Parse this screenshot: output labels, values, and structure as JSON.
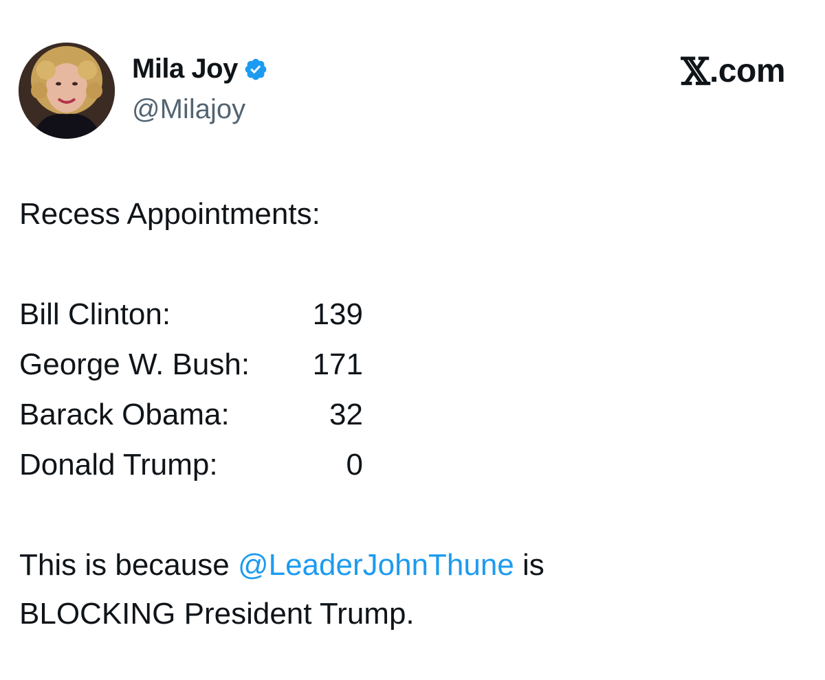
{
  "post": {
    "author": {
      "display_name": "Mila Joy",
      "handle": "@Milajoy",
      "verified_color": "#1d9bf0"
    },
    "site_label": ".com",
    "heading": "Recess Appointments:",
    "rows": [
      {
        "name": "Bill Clinton:",
        "count": "139"
      },
      {
        "name": "George W. Bush:",
        "count": "171"
      },
      {
        "name": "Barack Obama:",
        "count": "32"
      },
      {
        "name": "Donald Trump:",
        "count": "0"
      }
    ],
    "footer": {
      "before_mention": "This is because ",
      "mention": "@LeaderJohnThune",
      "after_mention": " is",
      "line2": "BLOCKING President Trump."
    }
  }
}
